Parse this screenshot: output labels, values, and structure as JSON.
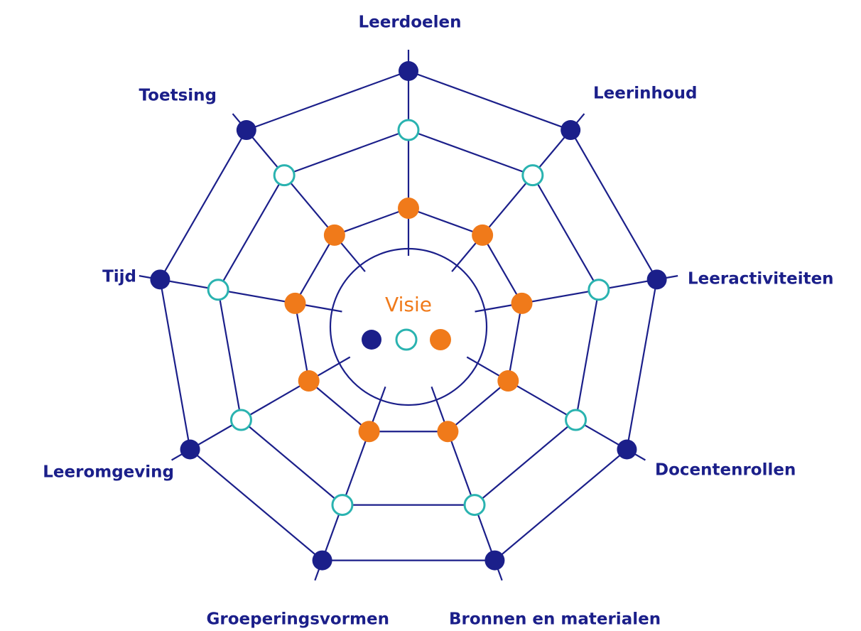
{
  "center": {
    "label": "Visie"
  },
  "nodes": [
    {
      "label": "Leerdoelen"
    },
    {
      "label": "Leerinhoud"
    },
    {
      "label": "Leeractiviteiten"
    },
    {
      "label": "Docentenrollen"
    },
    {
      "label": "Bronnen en materialen"
    },
    {
      "label": "Groeperingsvormen"
    },
    {
      "label": "Leeromgeving"
    },
    {
      "label": "Tijd"
    },
    {
      "label": "Toetsing"
    }
  ]
}
